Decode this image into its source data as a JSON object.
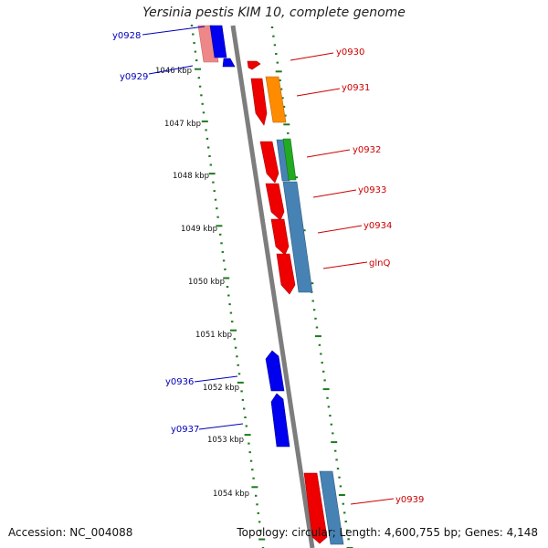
{
  "header": {
    "title": "Yersinia pestis KIM 10, complete genome"
  },
  "footer": {
    "accession": "Accession: NC_004088",
    "topology": "Topology: circular; Length: 4,600,755 bp; Genes: 4,148"
  },
  "colors": {
    "backbone": "#7d7d7d",
    "scale_ticks": "#1e7a1e",
    "forward_label": "#cc0000",
    "reverse_label": "#0000bb",
    "gene_red": "#ee0000",
    "gene_blue": "#0000ee",
    "gene_steelblue": "#4682b4",
    "gene_orange": "#ff8c00",
    "gene_green": "#22aa22",
    "gene_pink": "#ee8888"
  },
  "scale_labels": [
    "1046 kbp",
    "1047 kbp",
    "1048 kbp",
    "1049 kbp",
    "1050 kbp",
    "1051 kbp",
    "1052 kbp",
    "1053 kbp",
    "1054 kbp"
  ],
  "gene_labels": [
    {
      "name": "y0928",
      "strand": "reverse"
    },
    {
      "name": "y0929",
      "strand": "reverse"
    },
    {
      "name": "y0930",
      "strand": "forward"
    },
    {
      "name": "y0931",
      "strand": "forward"
    },
    {
      "name": "y0932",
      "strand": "forward"
    },
    {
      "name": "y0933",
      "strand": "forward"
    },
    {
      "name": "y0934",
      "strand": "forward"
    },
    {
      "name": "glnQ",
      "strand": "forward"
    },
    {
      "name": "y0936",
      "strand": "reverse"
    },
    {
      "name": "y0937",
      "strand": "reverse"
    },
    {
      "name": "y0939",
      "strand": "forward"
    }
  ]
}
